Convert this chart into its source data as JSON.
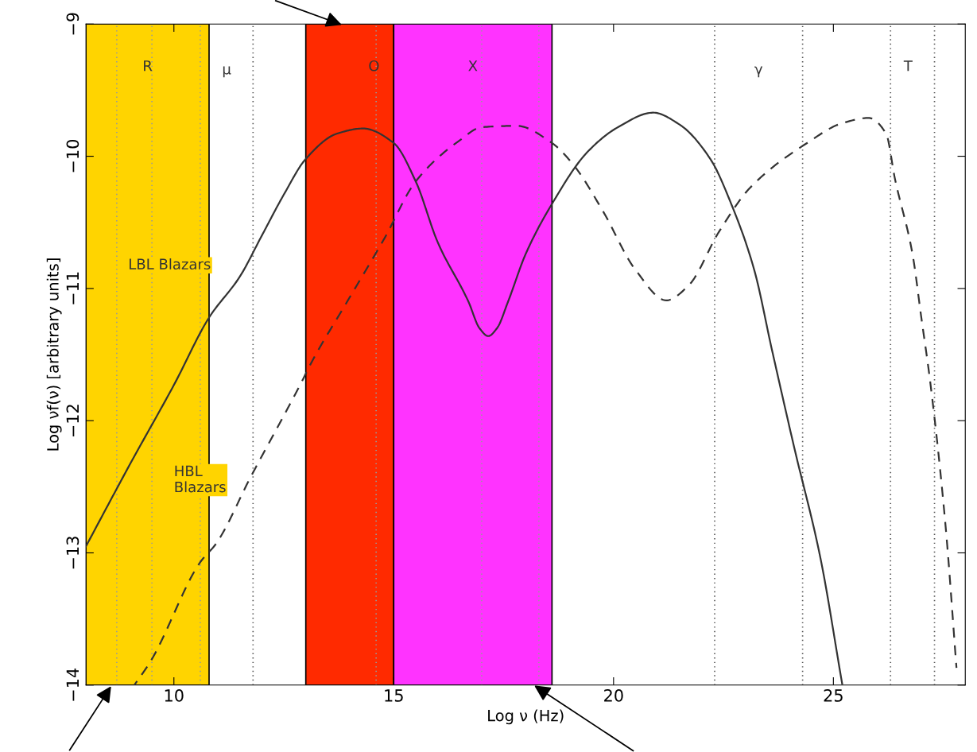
{
  "chart_data": {
    "type": "line",
    "xlabel": "Log ν (Hz)",
    "ylabel": "Log νf(ν) [arbitrary units]",
    "xlim": [
      8,
      28
    ],
    "ylim": [
      -14,
      -9
    ],
    "xticks": [
      10,
      15,
      20,
      25
    ],
    "yticks": [
      -14,
      -13,
      -12,
      -11,
      -10,
      -9
    ],
    "grid": false,
    "legend": false,
    "series": [
      {
        "color": "#333333",
        "line_style": "solid",
        "x": [
          8.0,
          9.0,
          10.0,
          10.8,
          11.5,
          12.0,
          12.5,
          13.0,
          13.7,
          14.3,
          15.0,
          15.5,
          16.0,
          16.7,
          16.95,
          17.15,
          17.35,
          17.6,
          18.0,
          18.6,
          19.4,
          20.1,
          20.9,
          21.5,
          22.2,
          22.7,
          23.2,
          23.6,
          24.1,
          24.7,
          25.2
        ],
        "values": [
          -12.95,
          -12.33,
          -11.73,
          -11.22,
          -10.91,
          -10.6,
          -10.29,
          -10.02,
          -9.83,
          -9.79,
          -9.9,
          -10.19,
          -10.65,
          -11.1,
          -11.3,
          -11.36,
          -11.3,
          -11.1,
          -10.74,
          -10.36,
          -9.97,
          -9.78,
          -9.67,
          -9.76,
          -10.02,
          -10.38,
          -10.86,
          -11.46,
          -12.19,
          -13.03,
          -13.99
        ]
      },
      {
        "color": "#333333",
        "line_style": "dashed",
        "x": [
          9.1,
          9.47,
          10.6,
          10.96,
          11.74,
          12.87,
          13.16,
          13.94,
          14.79,
          15.5,
          16.5,
          17.0,
          17.8,
          18.6,
          19.1,
          19.75,
          20.5,
          21.2,
          21.7,
          22.4,
          23.1,
          24.4,
          25.2,
          25.8,
          26.2,
          26.4,
          26.8,
          27.0,
          27.2,
          27.55,
          27.8
        ],
        "values": [
          -14.0,
          -13.82,
          -13.07,
          -12.93,
          -12.43,
          -11.73,
          -11.54,
          -11.1,
          -10.62,
          -10.19,
          -9.88,
          -9.78,
          -9.77,
          -9.9,
          -10.07,
          -10.41,
          -10.86,
          -11.09,
          -10.98,
          -10.57,
          -10.24,
          -9.9,
          -9.75,
          -9.71,
          -9.83,
          -10.17,
          -10.74,
          -11.22,
          -11.7,
          -12.79,
          -13.87
        ]
      }
    ],
    "bands": [
      {
        "axis": "x",
        "from": 8,
        "to": 10.8,
        "color": "#ffd400",
        "label": "R"
      },
      {
        "axis": "x",
        "from": 13,
        "to": 15,
        "color": "#ff2a00",
        "label": "O"
      },
      {
        "axis": "x",
        "from": 15,
        "to": 18.6,
        "color": "#ff33ff",
        "label": "X"
      }
    ],
    "ref_lines": [
      {
        "axis": "x",
        "value": 8.7,
        "line_style": "dotted",
        "color": "#999999"
      },
      {
        "axis": "x",
        "value": 9.5,
        "line_style": "dotted",
        "color": "#999999"
      },
      {
        "axis": "x",
        "value": 10.6,
        "line_style": "dotted",
        "color": "#999999"
      },
      {
        "axis": "x",
        "value": 11.8,
        "line_style": "dotted",
        "color": "#555555"
      },
      {
        "axis": "x",
        "value": 14.6,
        "line_style": "dotted",
        "color": "#999999"
      },
      {
        "axis": "x",
        "value": 17.0,
        "line_style": "dotted",
        "color": "#999999"
      },
      {
        "axis": "x",
        "value": 18.3,
        "line_style": "dotted",
        "color": "#999999"
      },
      {
        "axis": "x",
        "value": 22.3,
        "line_style": "dotted",
        "color": "#555555"
      },
      {
        "axis": "x",
        "value": 24.3,
        "line_style": "dotted",
        "color": "#555555"
      },
      {
        "axis": "x",
        "value": 26.3,
        "line_style": "dotted",
        "color": "#555555"
      },
      {
        "axis": "x",
        "value": 27.3,
        "line_style": "dotted",
        "color": "#555555"
      }
    ],
    "annotations": [
      "μ",
      "γ",
      "T",
      "LBL Blazars",
      "HBL\nBlazars"
    ]
  }
}
